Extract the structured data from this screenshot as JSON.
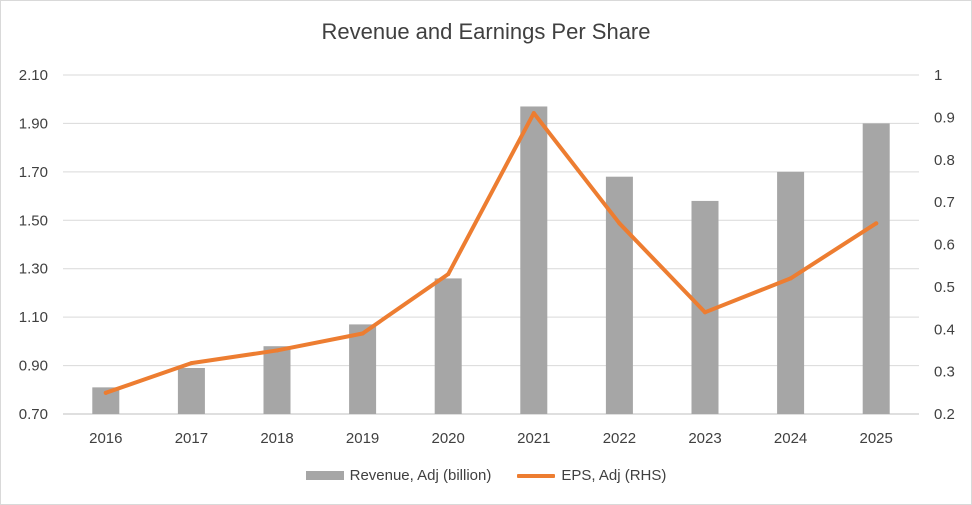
{
  "chart_data": {
    "type": "bar-line-combo",
    "title": "Revenue and Earnings Per Share",
    "categories": [
      "2016",
      "2017",
      "2018",
      "2019",
      "2020",
      "2021",
      "2022",
      "2023",
      "2024",
      "2025"
    ],
    "series": [
      {
        "name": "Revenue, Adj (billion)",
        "type": "bar",
        "axis": "left",
        "color": "#a6a6a6",
        "values": [
          0.81,
          0.89,
          0.98,
          1.07,
          1.26,
          1.97,
          1.68,
          1.58,
          1.7,
          1.9
        ]
      },
      {
        "name": "EPS, Adj (RHS)",
        "type": "line",
        "axis": "right",
        "color": "#ed7d31",
        "values": [
          0.25,
          0.32,
          0.35,
          0.39,
          0.53,
          0.91,
          0.65,
          0.44,
          0.52,
          0.65
        ]
      }
    ],
    "y_left": {
      "min": 0.7,
      "max": 2.1,
      "ticks": [
        "2.10",
        "1.90",
        "1.70",
        "1.50",
        "1.30",
        "1.10",
        "0.90",
        "0.70"
      ]
    },
    "y_right": {
      "min": 0.2,
      "max": 1.0,
      "ticks": [
        "1",
        "0.9",
        "0.8",
        "0.7",
        "0.6",
        "0.5",
        "0.4",
        "0.3",
        "0.2"
      ]
    },
    "grid": "horizontal",
    "legend_position": "bottom"
  }
}
